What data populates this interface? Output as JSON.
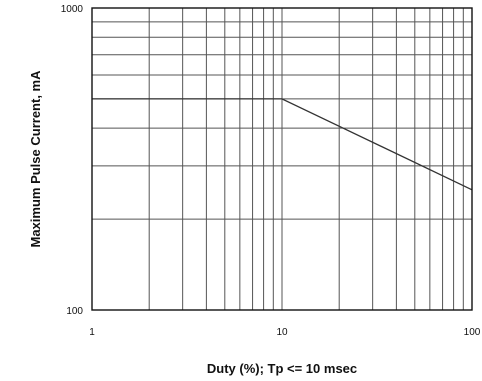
{
  "chart_data": {
    "type": "line",
    "title": "",
    "xlabel": "Duty (%); Tp <= 10 msec",
    "ylabel": "Maximum Pulse Current, mA",
    "xscale": "log",
    "yscale": "log",
    "xlim": [
      1,
      100
    ],
    "ylim": [
      100,
      1000
    ],
    "grid": true,
    "legend": "none",
    "x_tick_labels": [
      {
        "value": 1,
        "label": "1"
      },
      {
        "value": 10,
        "label": "10"
      },
      {
        "value": 100,
        "label": "100"
      }
    ],
    "y_tick_labels": [
      {
        "value": 100,
        "label": "100"
      },
      {
        "value": 1000,
        "label": "1000"
      }
    ],
    "series": [
      {
        "x": [
          1,
          10,
          100
        ],
        "y": [
          500,
          500,
          250
        ]
      }
    ],
    "colors": {
      "line": "#333333",
      "grid": "#555555",
      "frame": "#111111",
      "background": "#ffffff"
    }
  }
}
